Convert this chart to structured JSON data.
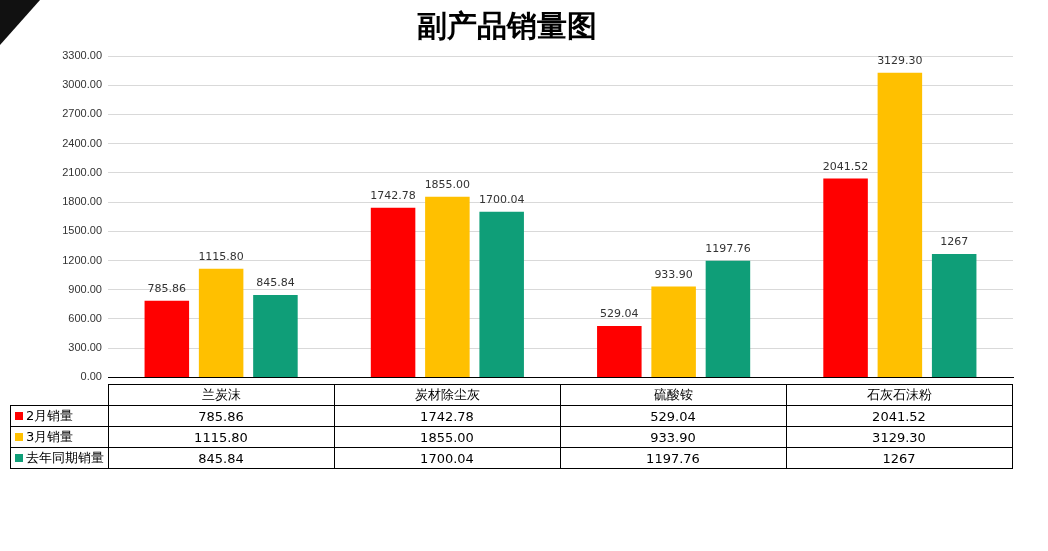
{
  "chart_data": {
    "type": "bar",
    "title": "副产品销量图",
    "categories": [
      "兰炭沫",
      "炭材除尘灰",
      "硫酸铵",
      "石灰石沫粉"
    ],
    "series": [
      {
        "name": "2月销量",
        "color": "#ff0000",
        "values": [
          785.86,
          1742.78,
          529.04,
          2041.52
        ],
        "value_labels": [
          "785.86",
          "1742.78",
          "529.04",
          "2041.52"
        ]
      },
      {
        "name": "3月销量",
        "color": "#ffc000",
        "values": [
          1115.8,
          1855,
          933.9,
          3129.3
        ],
        "value_labels": [
          "1115.80",
          "1855.00",
          "933.90",
          "3129.30"
        ]
      },
      {
        "name": "去年同期销量",
        "color": "#0f9e78",
        "values": [
          845.84,
          1700.04,
          1197.76,
          1267
        ],
        "value_labels": [
          "845.84",
          "1700.04",
          "1197.76",
          "1267"
        ]
      }
    ],
    "ylim": [
      0,
      3300
    ],
    "yticks": [
      {
        "value": 0,
        "label": "0.00"
      },
      {
        "value": 300,
        "label": "300.00"
      },
      {
        "value": 600,
        "label": "600.00"
      },
      {
        "value": 900,
        "label": "900.00"
      },
      {
        "value": 1200,
        "label": "1200.00"
      },
      {
        "value": 1500,
        "label": "1500.00"
      },
      {
        "value": 1800,
        "label": "1800.00"
      },
      {
        "value": 2100,
        "label": "2100.00"
      },
      {
        "value": 2400,
        "label": "2400.00"
      },
      {
        "value": 2700,
        "label": "2700.00"
      },
      {
        "value": 3000,
        "label": "3000.00"
      },
      {
        "value": 3300,
        "label": "3300.00"
      }
    ],
    "grid": "y",
    "legend": "bottom"
  }
}
